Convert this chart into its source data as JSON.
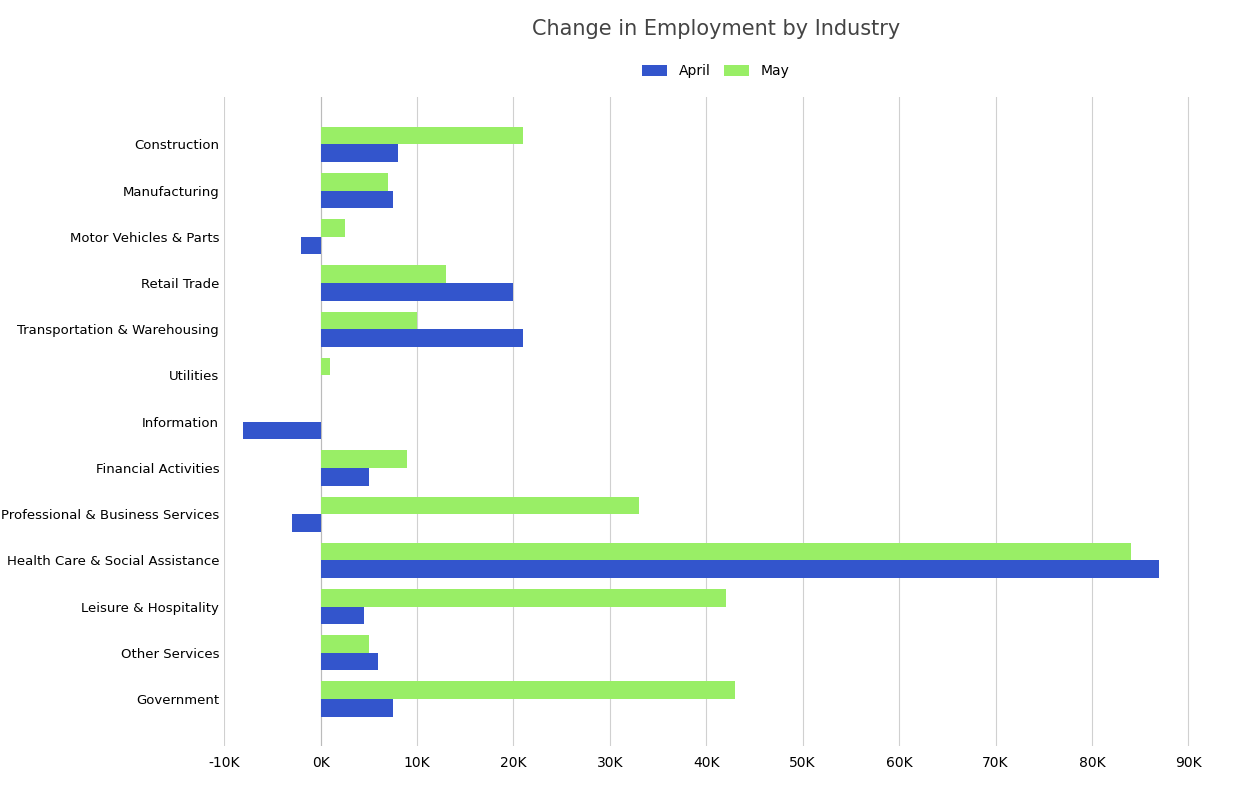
{
  "title": "Change in Employment by Industry",
  "categories": [
    "Construction",
    "Manufacturing",
    "Motor Vehicles & Parts",
    "Retail Trade",
    "Transportation & Warehousing",
    "Utilities",
    "Information",
    "Financial Activities",
    "Professional & Business Services",
    "Health Care & Social Assistance",
    "Leisure & Hospitality",
    "Other Services",
    "Government"
  ],
  "april_values": [
    8000,
    7500,
    -2000,
    20000,
    21000,
    0,
    -8000,
    5000,
    -3000,
    87000,
    4500,
    6000,
    7500
  ],
  "may_values": [
    21000,
    7000,
    2500,
    13000,
    10000,
    1000,
    0,
    9000,
    33000,
    84000,
    42000,
    5000,
    43000
  ],
  "april_color": "#3355cc",
  "may_color": "#99ee66",
  "background_color": "#ffffff",
  "grid_color": "#d0d0d0",
  "xlim": [
    -10000,
    92000
  ],
  "bar_height": 0.38,
  "legend_labels": [
    "April",
    "May"
  ],
  "title_fontsize": 15,
  "tick_fontsize": 10,
  "label_fontsize": 9.5
}
